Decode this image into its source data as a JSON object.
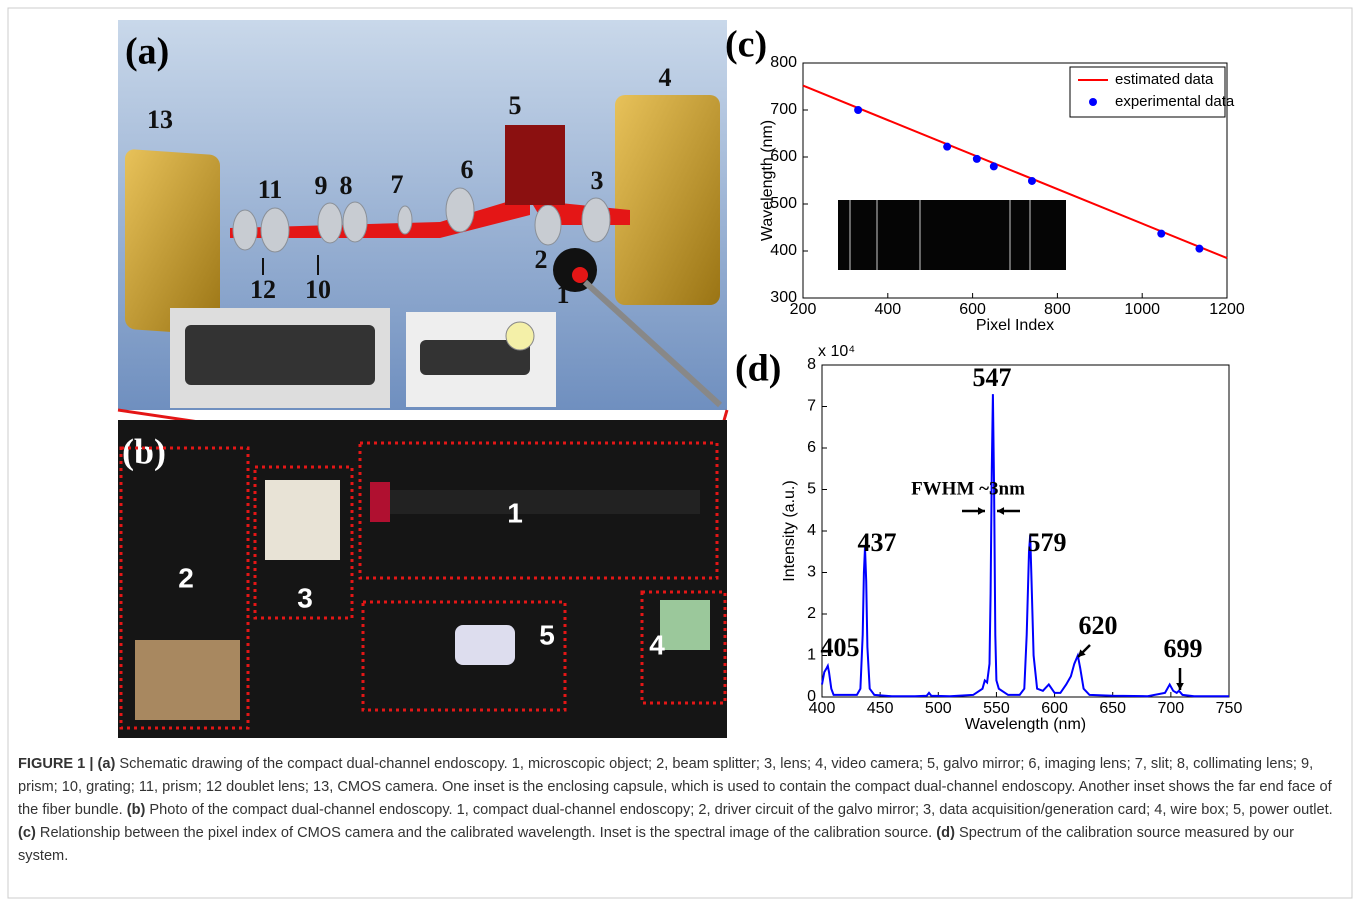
{
  "figure": {
    "panel_a": {
      "label": "(a)",
      "numbers": [
        "13",
        "11",
        "9",
        "8",
        "7",
        "6",
        "5",
        "4",
        "3",
        "2",
        "1",
        "12",
        "10"
      ]
    },
    "panel_b": {
      "label": "(b)",
      "boxes": [
        "1",
        "2",
        "3",
        "4",
        "5"
      ]
    },
    "caption": [
      {
        "text": "FIGURE 1 | ",
        "bold": true
      },
      {
        "text": "(a)",
        "bold": true
      },
      {
        "text": " Schematic  drawing of the compact dual-channel endoscopy. 1, microscopic object; 2, beam splitter; 3, lens; 4, video camera; 5, galvo mirror; 6, imaging lens; 7, slit; 8, collimating lens; 9, prism; 10, grating; 11, prism; 12 doublet lens; 13, CMOS camera. One inset is the enclosing capsule, which is used to contain the compact dual-channel endoscopy. Another inset shows the far end face of the fiber bundle. ",
        "bold": false
      },
      {
        "text": "(b)",
        "bold": true
      },
      {
        "text": " Photo of the compact dual-channel endoscopy. 1, compact dual-channel endoscopy; 2, driver circuit of the galvo mirror; 3, data acquisition/generation card; 4, wire box; 5, power outlet. ",
        "bold": false
      },
      {
        "text": "(c)",
        "bold": true
      },
      {
        "text": " Relationship between the pixel index of CMOS camera and the calibrated wavelength. Inset is the spectral image of the calibration source. ",
        "bold": false
      },
      {
        "text": "(d)",
        "bold": true
      },
      {
        "text": " Spectrum of the calibration source measured by our system.",
        "bold": false
      }
    ]
  },
  "chart_data": [
    {
      "type": "line",
      "title": "(c)",
      "xlabel": "Pixel Index",
      "ylabel": "Wavelength (nm)",
      "xlim": [
        200,
        1200
      ],
      "xticks": [
        200,
        400,
        600,
        800,
        1000,
        1200
      ],
      "ylim": [
        300,
        800
      ],
      "yticks": [
        300,
        400,
        500,
        600,
        700,
        800
      ],
      "legend": "upper right",
      "series": [
        {
          "name": "estimated data",
          "color": "#ff0000",
          "mode": "line",
          "x": [
            200,
            1200
          ],
          "values": [
            752,
            385
          ]
        },
        {
          "name": "experimental data",
          "color": "#0000ff",
          "mode": "markers",
          "x": [
            330,
            540,
            610,
            650,
            740,
            1045,
            1135
          ],
          "values": [
            700,
            622,
            596,
            580,
            549,
            437,
            405
          ]
        }
      ]
    },
    {
      "type": "line",
      "title": "(d)",
      "xlabel": "Wavelength (nm)",
      "ylabel": "Intensity (a.u.)",
      "y_multiplier": "x 10⁴",
      "xlim": [
        400,
        750
      ],
      "xticks": [
        400,
        450,
        500,
        550,
        600,
        650,
        700,
        750
      ],
      "ylim": [
        0,
        8
      ],
      "yticks": [
        0,
        1,
        2,
        3,
        4,
        5,
        6,
        7,
        8
      ],
      "annotations": [
        "405",
        "437",
        "547",
        "579",
        "620",
        "699",
        "FWHM ~3nm"
      ],
      "series": [
        {
          "color": "#0000ff",
          "mode": "line",
          "x": [
            400,
            402,
            404,
            405,
            406,
            408,
            410,
            420,
            430,
            433,
            435,
            436,
            437,
            438,
            439,
            441,
            445,
            460,
            480,
            490,
            492,
            494,
            510,
            530,
            538,
            540,
            542,
            544,
            545,
            546,
            547,
            548,
            549,
            550,
            552,
            560,
            570,
            574,
            576,
            578,
            579,
            580,
            582,
            585,
            590,
            595,
            600,
            605,
            610,
            614,
            617,
            620,
            622,
            625,
            630,
            650,
            680,
            695,
            699,
            702,
            705,
            707,
            710,
            720,
            750
          ],
          "values": [
            0.3,
            0.6,
            0.7,
            0.75,
            0.6,
            0.2,
            0.05,
            0.05,
            0.05,
            0.2,
            1.5,
            3.0,
            3.6,
            2.8,
            1.2,
            0.2,
            0.05,
            0.02,
            0.02,
            0.03,
            0.1,
            0.03,
            0.02,
            0.05,
            0.2,
            0.4,
            0.35,
            0.8,
            2.5,
            5.5,
            7.3,
            5.0,
            1.5,
            0.4,
            0.2,
            0.05,
            0.05,
            0.2,
            1.5,
            3.5,
            3.9,
            3.0,
            1.0,
            0.2,
            0.15,
            0.3,
            0.1,
            0.1,
            0.3,
            0.5,
            0.8,
            1.0,
            0.7,
            0.2,
            0.05,
            0.03,
            0.02,
            0.1,
            0.3,
            0.15,
            0.1,
            0.15,
            0.05,
            0.02,
            0.02
          ]
        }
      ]
    }
  ]
}
